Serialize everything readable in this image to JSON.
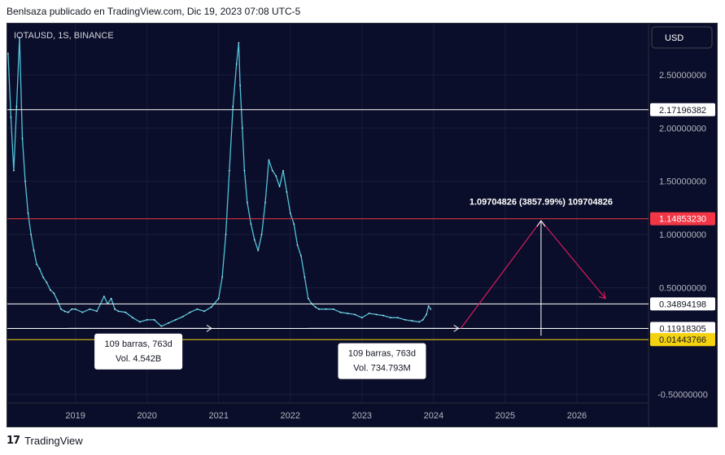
{
  "header": {
    "attribution": "Benlsaza publicado en TradingView.com, Dic 19, 2023 07:08 UTC-5"
  },
  "footer": {
    "brand": "TradingView",
    "logo_icon": "tradingview-logo-icon"
  },
  "chart_data": {
    "type": "line",
    "symbol_label": "IOTAUSD, 1S, BINANCE",
    "currency_button": "USD",
    "x_tick_labels": [
      "2019",
      "2020",
      "2021",
      "2022",
      "2023",
      "2024",
      "2025",
      "2026"
    ],
    "y_tick_labels": [
      "2.50000000",
      "2.00000000",
      "1.50000000",
      "1.00000000",
      "0.50000000",
      "-0.50000000"
    ],
    "y_ticks": [
      2.5,
      2.0,
      1.5,
      1.0,
      0.5,
      -0.5
    ],
    "ylim": [
      -0.58,
      2.98
    ],
    "xlim": [
      2018.05,
      2027.0
    ],
    "grid": true,
    "series": [
      {
        "color": "#4fc3d9",
        "x": [
          2018.06,
          2018.1,
          2018.14,
          2018.18,
          2018.22,
          2018.26,
          2018.3,
          2018.34,
          2018.38,
          2018.42,
          2018.46,
          2018.5,
          2018.55,
          2018.6,
          2018.65,
          2018.7,
          2018.75,
          2018.8,
          2018.85,
          2018.9,
          2018.95,
          2019.0,
          2019.1,
          2019.2,
          2019.3,
          2019.4,
          2019.45,
          2019.5,
          2019.55,
          2019.6,
          2019.7,
          2019.8,
          2019.9,
          2020.0,
          2020.1,
          2020.2,
          2020.3,
          2020.4,
          2020.5,
          2020.6,
          2020.7,
          2020.8,
          2020.9,
          2021.0,
          2021.05,
          2021.1,
          2021.15,
          2021.2,
          2021.25,
          2021.28,
          2021.3,
          2021.33,
          2021.36,
          2021.4,
          2021.45,
          2021.5,
          2021.55,
          2021.6,
          2021.65,
          2021.7,
          2021.75,
          2021.8,
          2021.85,
          2021.9,
          2021.95,
          2022.0,
          2022.05,
          2022.1,
          2022.15,
          2022.2,
          2022.25,
          2022.3,
          2022.35,
          2022.4,
          2022.5,
          2022.6,
          2022.7,
          2022.8,
          2022.9,
          2023.0,
          2023.1,
          2023.2,
          2023.3,
          2023.4,
          2023.5,
          2023.6,
          2023.7,
          2023.8,
          2023.85,
          2023.9,
          2023.93,
          2023.96
        ],
        "values": [
          2.7,
          2.1,
          1.6,
          2.2,
          2.85,
          1.9,
          1.5,
          1.2,
          1.0,
          0.85,
          0.72,
          0.68,
          0.6,
          0.55,
          0.48,
          0.45,
          0.38,
          0.3,
          0.28,
          0.27,
          0.3,
          0.3,
          0.27,
          0.3,
          0.28,
          0.42,
          0.35,
          0.4,
          0.3,
          0.28,
          0.27,
          0.22,
          0.18,
          0.2,
          0.2,
          0.14,
          0.17,
          0.2,
          0.23,
          0.27,
          0.3,
          0.28,
          0.32,
          0.4,
          0.6,
          1.0,
          1.6,
          2.2,
          2.6,
          2.8,
          2.4,
          2.0,
          1.6,
          1.3,
          1.1,
          0.95,
          0.85,
          1.0,
          1.3,
          1.7,
          1.6,
          1.55,
          1.45,
          1.6,
          1.4,
          1.2,
          1.1,
          0.9,
          0.8,
          0.6,
          0.4,
          0.35,
          0.32,
          0.3,
          0.3,
          0.3,
          0.27,
          0.26,
          0.25,
          0.22,
          0.26,
          0.25,
          0.24,
          0.22,
          0.22,
          0.2,
          0.19,
          0.18,
          0.2,
          0.25,
          0.33,
          0.3
        ]
      }
    ],
    "horizontal_levels": [
      {
        "value": 2.17196382,
        "label": "2.17196382",
        "color": "#ffffff",
        "label_bg": "#ffffff",
        "label_fg": "#131722"
      },
      {
        "value": 1.1485323,
        "label": "1.14853230",
        "color": "#f23645",
        "label_bg": "#f23645",
        "label_fg": "#ffffff"
      },
      {
        "value": 0.34894198,
        "label": "0.34894198",
        "color": "#ffffff",
        "label_bg": "#ffffff",
        "label_fg": "#131722"
      },
      {
        "value": 0.11918305,
        "label": "0.11918305",
        "color": "#ffffff",
        "label_bg": "#ffffff",
        "label_fg": "#131722"
      },
      {
        "value": 0.01443766,
        "label": "0.01443766",
        "color": "#f5d20f",
        "label_bg": "#f5d20f",
        "label_fg": "#131722"
      }
    ],
    "annotations": [
      {
        "kind": "range-arrow",
        "x_start": 2018.9,
        "x_end": 2020.9,
        "y": 0.12,
        "color": "#ffffff"
      },
      {
        "kind": "range-arrow",
        "x_start": 2022.25,
        "x_end": 2024.35,
        "y": 0.12,
        "color": "#ffffff"
      },
      {
        "kind": "info-box",
        "lines": [
          "109 barras, 763d",
          "Vol. 4.542B"
        ],
        "anchor_x": 2019.88,
        "anchor_y": 0.04
      },
      {
        "kind": "info-box",
        "lines": [
          "109 barras, 763d",
          "Vol. 734.793M"
        ],
        "anchor_x": 2023.28,
        "anchor_y": -0.05
      },
      {
        "kind": "projection",
        "color": "#d81b60",
        "points": [
          [
            2024.38,
            0.12
          ],
          [
            2025.5,
            1.13
          ],
          [
            2026.4,
            0.4
          ]
        ]
      },
      {
        "kind": "measure-arrow",
        "x": 2025.5,
        "y_from": 0.05,
        "y_to": 1.13,
        "color": "#ffffff"
      },
      {
        "kind": "measure-label",
        "text": "1.09704826 (3857.99%) 109704826",
        "x": 2025.5,
        "y": 1.28
      }
    ]
  }
}
